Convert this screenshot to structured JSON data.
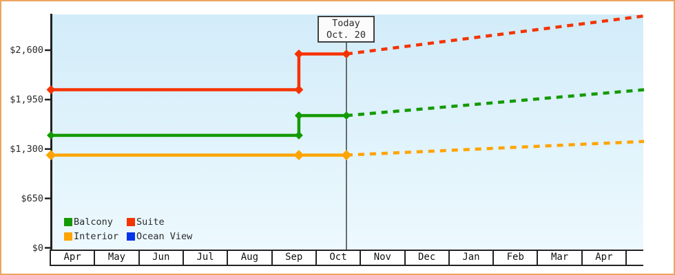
{
  "chart_data": {
    "type": "line",
    "x_axis": {
      "categories": [
        "Apr",
        "May",
        "Jun",
        "Jul",
        "Aug",
        "Sep",
        "Oct",
        "Nov",
        "Dec",
        "Jan",
        "Feb",
        "Mar",
        "Apr",
        ""
      ],
      "x_unit": "months from start of Apr",
      "step_x": 5.58,
      "today_x": 6.65,
      "x_end": 13.35
    },
    "y_axis": {
      "max": 2600,
      "ticks": [
        {
          "label": "$2,600",
          "value": 2600
        },
        {
          "label": "$1,950",
          "value": 1950
        },
        {
          "label": "$1,300",
          "value": 1300
        },
        {
          "label": "$650",
          "value": 650
        },
        {
          "label": "$0",
          "value": 0
        }
      ]
    },
    "annotation": {
      "line1": "Today",
      "line2": "Oct. 20"
    },
    "legend": [
      {
        "label": "Balcony",
        "color": "#149a00"
      },
      {
        "label": "Suite",
        "color": "#f53300"
      },
      {
        "label": "Interior",
        "color": "#ffa400"
      },
      {
        "label": "Ocean View",
        "color": "#0435e8"
      }
    ],
    "series": [
      {
        "name": "Suite",
        "color": "#f53300",
        "line_width": 4.5,
        "marker_size": 6.5,
        "solid": [
          [
            0,
            2080
          ],
          [
            5.58,
            2080
          ],
          [
            5.58,
            2550
          ],
          [
            6.65,
            2550
          ]
        ],
        "dashed_forecast": [
          [
            6.65,
            2550
          ],
          [
            13.35,
            3050
          ]
        ],
        "markers": [
          [
            0,
            2080
          ],
          [
            5.58,
            2080
          ],
          [
            5.58,
            2550
          ],
          [
            6.65,
            2550
          ]
        ]
      },
      {
        "name": "Balcony",
        "color": "#149a00",
        "line_width": 4.5,
        "marker_size": 6,
        "solid": [
          [
            0,
            1480
          ],
          [
            5.58,
            1480
          ],
          [
            5.58,
            1740
          ],
          [
            6.65,
            1740
          ]
        ],
        "dashed_forecast": [
          [
            6.65,
            1740
          ],
          [
            13.35,
            2080
          ]
        ],
        "markers": [
          [
            0,
            1480
          ],
          [
            5.58,
            1480
          ],
          [
            5.58,
            1740
          ],
          [
            6.65,
            1740
          ]
        ]
      },
      {
        "name": "Interior",
        "color": "#ffa400",
        "line_width": 4.5,
        "marker_size": 7.5,
        "solid": [
          [
            0,
            1220
          ],
          [
            6.65,
            1220
          ]
        ],
        "dashed_forecast": [
          [
            6.65,
            1220
          ],
          [
            13.35,
            1400
          ]
        ],
        "markers": [
          [
            0,
            1220
          ],
          [
            5.58,
            1220
          ],
          [
            6.65,
            1220
          ]
        ]
      },
      {
        "name": "Ocean View",
        "color": "#0435e8",
        "line_width": 4.5,
        "marker_size": 6,
        "solid": [],
        "dashed_forecast": [],
        "markers": []
      }
    ]
  },
  "colors": {
    "frame_border": "#eba55f",
    "plot_gradient_top": "#d2ecf9",
    "plot_gradient_bottom": "#edf9fe",
    "axis": "#222222",
    "today_line": "#3f3f3f",
    "text": "#2a2a2a"
  }
}
